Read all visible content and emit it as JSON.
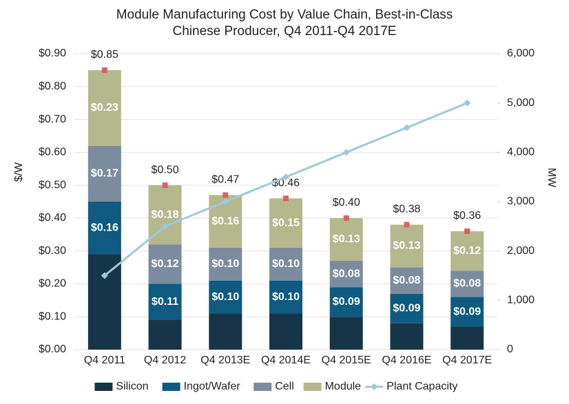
{
  "chart_data": {
    "type": "bar",
    "title": [
      "Module Manufacturing Cost by Value Chain, Best-in-Class",
      "Chinese Producer, Q4 2011-Q4 2017E"
    ],
    "y_label": "$/W",
    "y2_label": "MW",
    "categories": [
      "Q4 2011",
      "Q4 2012",
      "Q4 2013E",
      "Q4 2014E",
      "Q4 2015E",
      "Q4 2016E",
      "Q4 2017E"
    ],
    "stacked": true,
    "series": [
      {
        "name": "Silicon",
        "color": "#173549",
        "values": [
          0.29,
          0.09,
          0.11,
          0.11,
          0.1,
          0.08,
          0.07
        ]
      },
      {
        "name": "Ingot/Wafer",
        "color": "#0e5a80",
        "values": [
          0.16,
          0.11,
          0.1,
          0.1,
          0.09,
          0.09,
          0.09
        ],
        "value_labels": [
          "$0.16",
          "$0.11",
          "$0.10",
          "$0.10",
          "$0.09",
          "$0.09",
          "$0.09"
        ]
      },
      {
        "name": "Cell",
        "color": "#7b8c9e",
        "values": [
          0.17,
          0.12,
          0.1,
          0.1,
          0.08,
          0.08,
          0.08
        ],
        "value_labels": [
          "$0.17",
          "$0.12",
          "$0.10",
          "$0.10",
          "$0.08",
          "$0.08",
          "$0.08"
        ]
      },
      {
        "name": "Module",
        "color": "#b5b88c",
        "values": [
          0.23,
          0.18,
          0.16,
          0.15,
          0.13,
          0.13,
          0.12
        ],
        "value_labels": [
          "$0.23",
          "$0.18",
          "$0.16",
          "$0.15",
          "$0.13",
          "$0.13",
          "$0.12"
        ]
      },
      {
        "name": "Plant Capacity",
        "type": "line",
        "axis": "y2",
        "color": "#9dc9d9",
        "values": [
          1500,
          2500,
          3000,
          3500,
          4000,
          4500,
          5000
        ]
      }
    ],
    "totals": {
      "color": "#d9625e",
      "values": [
        0.85,
        0.5,
        0.47,
        0.46,
        0.4,
        0.38,
        0.36
      ],
      "value_labels": [
        "$0.85",
        "$0.50",
        "$0.47",
        "$0.46",
        "$0.40",
        "$0.38",
        "$0.36"
      ]
    },
    "ylim": [
      0,
      0.9
    ],
    "yticks": [
      {
        "value": 0,
        "label": "$0.00"
      },
      {
        "value": 0.1,
        "label": "$0.10"
      },
      {
        "value": 0.2,
        "label": "$0.20"
      },
      {
        "value": 0.3,
        "label": "$0.30"
      },
      {
        "value": 0.4,
        "label": "$0.40"
      },
      {
        "value": 0.5,
        "label": "$0.50"
      },
      {
        "value": 0.6,
        "label": "$0.60"
      },
      {
        "value": 0.7,
        "label": "$0.70"
      },
      {
        "value": 0.8,
        "label": "$0.80"
      },
      {
        "value": 0.9,
        "label": "$0.90"
      }
    ],
    "y2lim": [
      0,
      6000
    ],
    "y2ticks": [
      0,
      {
        "value": 1000,
        "label": "1,000"
      },
      {
        "value": 2000,
        "label": "2,000"
      },
      {
        "value": 3000,
        "label": "3,000"
      },
      {
        "value": 4000,
        "label": "4,000"
      },
      {
        "value": 5000,
        "label": "5,000"
      },
      {
        "value": 6000,
        "label": "6,000"
      }
    ],
    "grid": true,
    "legend": "bottom"
  }
}
